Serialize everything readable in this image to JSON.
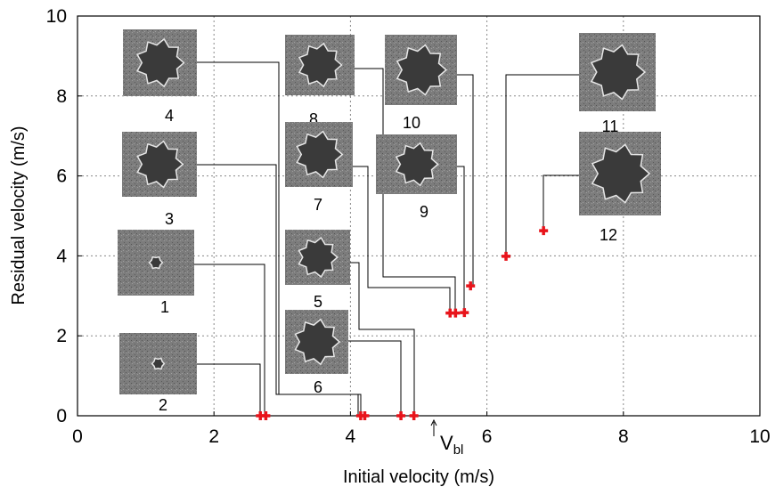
{
  "chart_data": {
    "type": "scatter",
    "x_label": "Initial  velocity (m/s)",
    "y_label": "Residual  velocity (m/s)",
    "series": [
      {
        "color": "#e8141b",
        "x": [
          2.68,
          2.76,
          4.15,
          4.21,
          4.74,
          4.93,
          5.46,
          5.54,
          5.67,
          5.76,
          6.28,
          6.83
        ],
        "values": [
          0,
          0,
          0,
          0,
          0,
          0,
          2.57,
          2.57,
          2.58,
          3.25,
          3.99,
          4.63
        ]
      }
    ],
    "xlim": [
      0,
      10
    ],
    "ylim": [
      0,
      10
    ],
    "xticks": [
      0,
      2,
      4,
      6,
      8,
      10
    ],
    "yticks": [
      0,
      2,
      4,
      6,
      8,
      10
    ],
    "grid": true,
    "inset_labels": [
      "1",
      "2",
      "3",
      "4",
      "5",
      "6",
      "7",
      "8",
      "9",
      "10",
      "11",
      "12"
    ],
    "annotation": {
      "text": "V",
      "subscript": "bl"
    }
  }
}
